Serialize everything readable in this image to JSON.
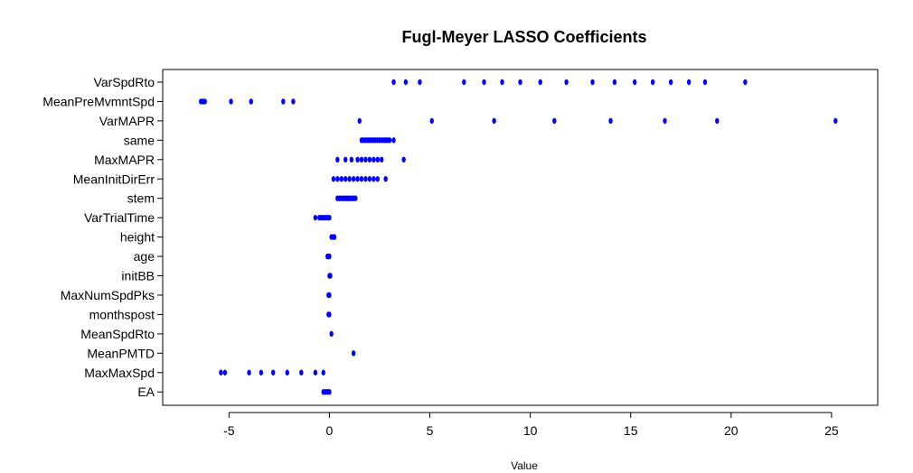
{
  "chart_data": {
    "type": "scatter",
    "title": "Fugl-Meyer LASSO Coefficients",
    "xlabel": "Value",
    "ylabel": "",
    "xlim": [
      -8.3,
      27.3
    ],
    "xticks": [
      -5,
      0,
      5,
      10,
      15,
      20,
      25
    ],
    "grid": false,
    "legend": "none",
    "point_color": "#0000ff",
    "categories": [
      "VarSpdRto",
      "MeanPreMvmntSpd",
      "VarMAPR",
      "same",
      "MaxMAPR",
      "MeanInitDirErr",
      "stem",
      "VarTrialTime",
      "height",
      "age",
      "initBB",
      "MaxNumSpdPks",
      "monthspost",
      "MeanSpdRto",
      "MeanPMTD",
      "MaxMaxSpd",
      "EA"
    ],
    "series": [
      {
        "category": "VarSpdRto",
        "values": [
          3.2,
          3.8,
          4.5,
          6.7,
          7.7,
          8.6,
          9.5,
          10.5,
          11.8,
          13.1,
          14.2,
          15.2,
          16.1,
          17.0,
          17.9,
          18.7,
          20.7
        ]
      },
      {
        "category": "MeanPreMvmntSpd",
        "values": [
          -6.4,
          -6.3,
          -6.2,
          -4.9,
          -3.9,
          -2.3,
          -1.8
        ]
      },
      {
        "category": "VarMAPR",
        "values": [
          1.5,
          5.1,
          8.2,
          11.2,
          14.0,
          16.7,
          19.3,
          25.2
        ]
      },
      {
        "category": "same",
        "values": [
          1.6,
          1.7,
          1.8,
          1.9,
          2.0,
          2.1,
          2.2,
          2.3,
          2.4,
          2.5,
          2.6,
          2.7,
          2.8,
          2.9,
          3.0,
          3.2
        ]
      },
      {
        "category": "MaxMAPR",
        "values": [
          0.4,
          0.8,
          1.1,
          1.4,
          1.6,
          1.8,
          2.0,
          2.2,
          2.4,
          2.6,
          3.7
        ]
      },
      {
        "category": "MeanInitDirErr",
        "values": [
          0.2,
          0.4,
          0.6,
          0.8,
          1.0,
          1.2,
          1.4,
          1.6,
          1.8,
          2.0,
          2.2,
          2.4,
          2.8
        ]
      },
      {
        "category": "stem",
        "values": [
          0.4,
          0.5,
          0.6,
          0.7,
          0.8,
          0.9,
          1.0,
          1.1,
          1.2,
          1.3
        ]
      },
      {
        "category": "VarTrialTime",
        "values": [
          -0.7,
          -0.5,
          -0.4,
          -0.3,
          -0.2,
          -0.1,
          0.0
        ]
      },
      {
        "category": "height",
        "values": [
          0.1,
          0.2,
          0.25
        ]
      },
      {
        "category": "age",
        "values": [
          -0.1,
          -0.05,
          0.0
        ]
      },
      {
        "category": "initBB",
        "values": [
          0.0,
          0.05
        ]
      },
      {
        "category": "MaxNumSpdPks",
        "values": [
          -0.05,
          0.0
        ]
      },
      {
        "category": "monthspost",
        "values": [
          -0.05,
          0.0
        ]
      },
      {
        "category": "MeanSpdRto",
        "values": [
          0.1
        ]
      },
      {
        "category": "MeanPMTD",
        "values": [
          1.2
        ]
      },
      {
        "category": "MaxMaxSpd",
        "values": [
          -5.4,
          -5.2,
          -4.0,
          -3.4,
          -2.8,
          -2.1,
          -1.4,
          -0.7,
          -0.3
        ]
      },
      {
        "category": "EA",
        "values": [
          -0.3,
          -0.2,
          -0.1,
          0.0
        ]
      }
    ]
  }
}
